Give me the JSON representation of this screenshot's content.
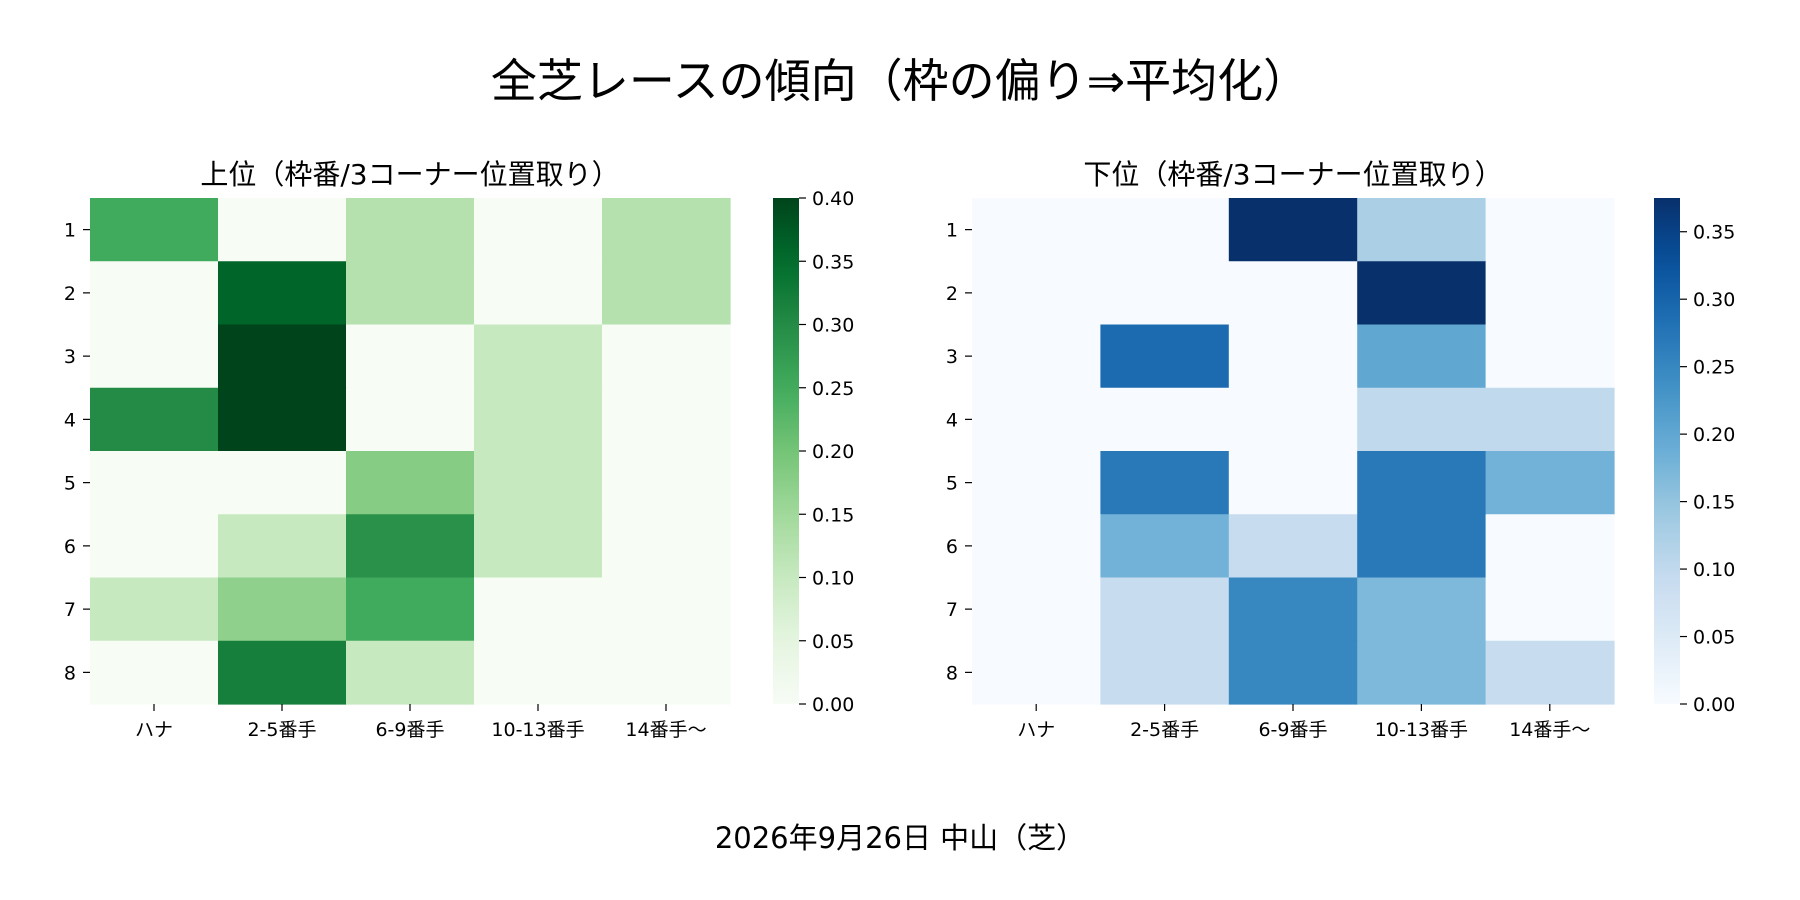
{
  "title": "全芝レースの傾向（枠の偏り⇒平均化）",
  "footer": "2026年9月26日 中山（芝）",
  "chart_data": [
    {
      "type": "heatmap",
      "title": "上位（枠番/3コーナー位置取り）",
      "colormap": "Greens",
      "color_low": "#f7fcf5",
      "color_high": "#00441b",
      "x_categories": [
        "ハナ",
        "2-5番手",
        "6-9番手",
        "10-13番手",
        "14番手〜"
      ],
      "y_categories": [
        "1",
        "2",
        "3",
        "4",
        "5",
        "6",
        "7",
        "8"
      ],
      "values": [
        [
          0.25,
          0.0,
          0.125,
          0.0,
          0.125
        ],
        [
          0.0,
          0.36,
          0.125,
          0.0,
          0.125
        ],
        [
          0.0,
          0.4,
          0.0,
          0.1,
          0.0
        ],
        [
          0.3,
          0.4,
          0.0,
          0.1,
          0.0
        ],
        [
          0.0,
          0.0,
          0.18,
          0.1,
          0.0
        ],
        [
          0.0,
          0.1,
          0.29,
          0.1,
          0.0
        ],
        [
          0.1,
          0.17,
          0.25,
          0.0,
          0.0
        ],
        [
          0.0,
          0.32,
          0.1,
          0.0,
          0.0
        ]
      ],
      "vmin": 0,
      "vmax": 0.4,
      "colorbar_ticks": [
        "0.00",
        "0.05",
        "0.10",
        "0.15",
        "0.20",
        "0.25",
        "0.30",
        "0.35",
        "0.40"
      ]
    },
    {
      "type": "heatmap",
      "title": "下位（枠番/3コーナー位置取り）",
      "colormap": "Blues",
      "color_low": "#f7fbff",
      "color_high": "#08306b",
      "x_categories": [
        "ハナ",
        "2-5番手",
        "6-9番手",
        "10-13番手",
        "14番手〜"
      ],
      "y_categories": [
        "1",
        "2",
        "3",
        "4",
        "5",
        "6",
        "7",
        "8"
      ],
      "values": [
        [
          0.0,
          0.0,
          0.375,
          0.125,
          0.0
        ],
        [
          0.0,
          0.0,
          0.0,
          0.375,
          0.0
        ],
        [
          0.0,
          0.29,
          0.0,
          0.2,
          0.0
        ],
        [
          0.0,
          0.0,
          0.0,
          0.1,
          0.1
        ],
        [
          0.0,
          0.27,
          0.0,
          0.27,
          0.18
        ],
        [
          0.0,
          0.18,
          0.09,
          0.27,
          0.0
        ],
        [
          0.0,
          0.09,
          0.25,
          0.17,
          0.0
        ],
        [
          0.0,
          0.09,
          0.25,
          0.17,
          0.09
        ]
      ],
      "vmin": 0,
      "vmax": 0.375,
      "colorbar_ticks": [
        "0.00",
        "0.05",
        "0.10",
        "0.15",
        "0.20",
        "0.25",
        "0.30",
        "0.35"
      ]
    }
  ]
}
